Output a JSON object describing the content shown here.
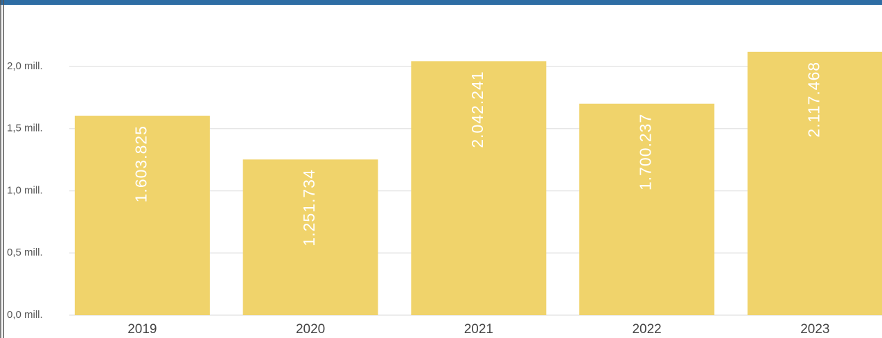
{
  "chart_data": {
    "type": "bar",
    "categories": [
      "2019",
      "2020",
      "2021",
      "2022",
      "2023"
    ],
    "values": [
      1603825,
      1251734,
      2042241,
      1700237,
      2117468
    ],
    "value_labels": [
      "1.603.825",
      "1.251.734",
      "2.042.241",
      "1.700.237",
      "2.117.468"
    ],
    "color": "#f0d36b",
    "ylim": [
      0,
      2200000
    ],
    "yticks": [
      {
        "value": 0,
        "label": "0,0 mill."
      },
      {
        "value": 500000,
        "label": "0,5 mill."
      },
      {
        "value": 1000000,
        "label": "1,0 mill."
      },
      {
        "value": 1500000,
        "label": "1,5 mill."
      },
      {
        "value": 2000000,
        "label": "2,0 mill."
      }
    ],
    "grid": true
  }
}
